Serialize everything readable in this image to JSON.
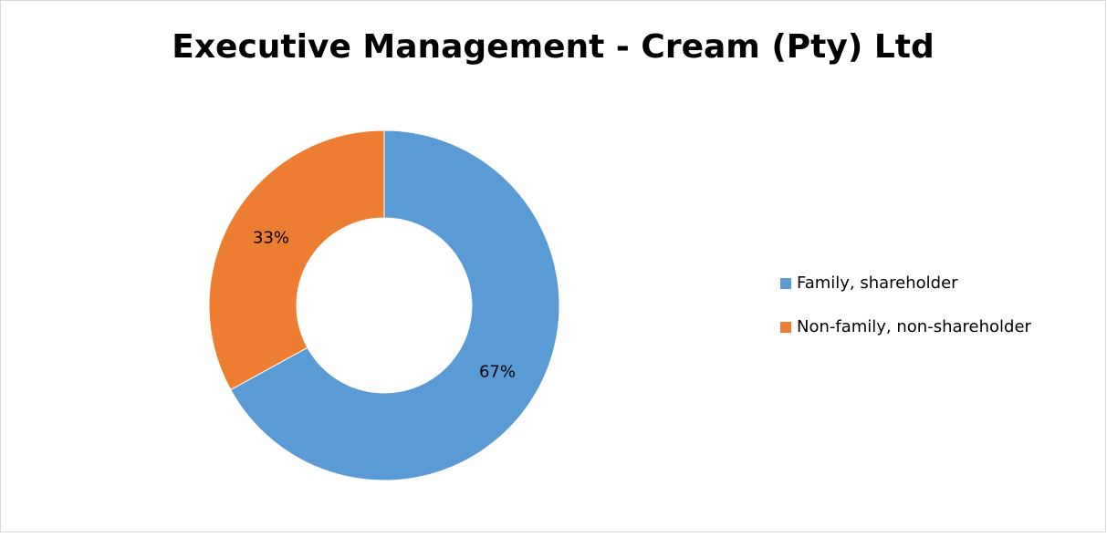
{
  "chart_data": {
    "type": "donut",
    "title": "Executive Management - Cream (Pty) Ltd",
    "categories": [
      "Family, shareholder",
      "Non-family, non-shareholder"
    ],
    "values": [
      67,
      33
    ],
    "value_labels": [
      "67%",
      "33%"
    ],
    "colors": [
      "#5b9bd5",
      "#ed7d31"
    ],
    "legend": "right"
  }
}
